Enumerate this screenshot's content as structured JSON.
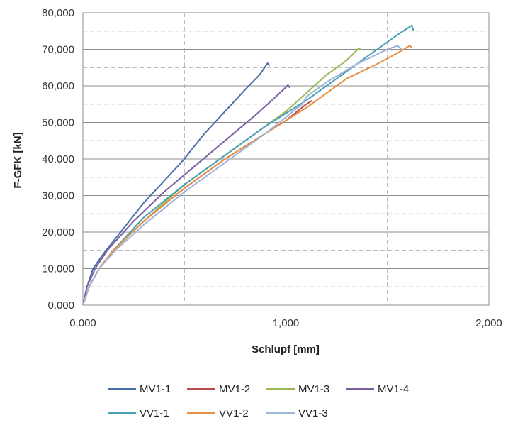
{
  "chart_data": {
    "type": "line",
    "title": "",
    "xlabel": "Schlupf [mm]",
    "ylabel": "F-GFK [kN]",
    "xlim": [
      0,
      2
    ],
    "ylim": [
      0,
      80
    ],
    "x_ticks": [
      "0,000",
      "1,000",
      "2,000"
    ],
    "y_ticks": [
      "0,000",
      "10,000",
      "20,000",
      "30,000",
      "40,000",
      "50,000",
      "60,000",
      "70,000",
      "80,000"
    ],
    "grid": true,
    "legend_position": "bottom",
    "series": [
      {
        "name": "MV1-1",
        "color": "#4a6fa8",
        "points": [
          [
            0,
            0
          ],
          [
            0.02,
            5
          ],
          [
            0.05,
            10
          ],
          [
            0.1,
            14
          ],
          [
            0.2,
            21
          ],
          [
            0.3,
            28
          ],
          [
            0.4,
            34
          ],
          [
            0.5,
            40
          ],
          [
            0.52,
            41.5
          ],
          [
            0.6,
            47
          ],
          [
            0.7,
            53
          ],
          [
            0.8,
            59
          ],
          [
            0.87,
            63
          ],
          [
            0.91,
            66.2
          ],
          [
            0.92,
            65.5
          ]
        ]
      },
      {
        "name": "MV1-2",
        "color": "#b9494a",
        "points": [
          [
            0,
            0
          ],
          [
            0.03,
            5
          ],
          [
            0.08,
            10
          ],
          [
            0.15,
            15
          ],
          [
            0.3,
            23
          ],
          [
            0.5,
            32
          ],
          [
            0.7,
            40
          ],
          [
            0.9,
            47
          ],
          [
            1.0,
            50.5
          ],
          [
            1.1,
            55
          ],
          [
            1.13,
            56
          ]
        ]
      },
      {
        "name": "MV1-3",
        "color": "#98b954",
        "points": [
          [
            0,
            0
          ],
          [
            0.03,
            5
          ],
          [
            0.08,
            10
          ],
          [
            0.15,
            15
          ],
          [
            0.3,
            23
          ],
          [
            0.5,
            33
          ],
          [
            0.7,
            41
          ],
          [
            0.9,
            49
          ],
          [
            1.0,
            53
          ],
          [
            1.1,
            58
          ],
          [
            1.2,
            63
          ],
          [
            1.3,
            67
          ],
          [
            1.36,
            70.3
          ],
          [
            1.37,
            69.8
          ]
        ]
      },
      {
        "name": "MV1-4",
        "color": "#7c5ea3",
        "points": [
          [
            0,
            0
          ],
          [
            0.02,
            5
          ],
          [
            0.06,
            10
          ],
          [
            0.12,
            15
          ],
          [
            0.25,
            23
          ],
          [
            0.4,
            31
          ],
          [
            0.55,
            38
          ],
          [
            0.7,
            45
          ],
          [
            0.85,
            52
          ],
          [
            0.95,
            57
          ],
          [
            1.01,
            60.2
          ],
          [
            1.02,
            59.5
          ]
        ]
      },
      {
        "name": "VV1-1",
        "color": "#45a0b6",
        "points": [
          [
            0,
            0
          ],
          [
            0.03,
            5
          ],
          [
            0.08,
            10
          ],
          [
            0.15,
            15
          ],
          [
            0.3,
            24
          ],
          [
            0.5,
            33
          ],
          [
            0.7,
            41
          ],
          [
            0.9,
            49
          ],
          [
            1.1,
            56
          ],
          [
            1.3,
            64
          ],
          [
            1.45,
            70
          ],
          [
            1.55,
            74
          ],
          [
            1.62,
            76.5
          ],
          [
            1.63,
            75
          ]
        ]
      },
      {
        "name": "VV1-2",
        "color": "#e68f47",
        "points": [
          [
            0,
            0
          ],
          [
            0.03,
            5
          ],
          [
            0.08,
            10
          ],
          [
            0.15,
            15
          ],
          [
            0.3,
            23
          ],
          [
            0.5,
            32
          ],
          [
            0.7,
            40
          ],
          [
            0.9,
            47
          ],
          [
            1.1,
            54
          ],
          [
            1.2,
            58
          ],
          [
            1.3,
            62
          ],
          [
            1.45,
            66
          ],
          [
            1.55,
            69
          ],
          [
            1.61,
            71
          ],
          [
            1.62,
            70.5
          ]
        ]
      },
      {
        "name": "VV1-3",
        "color": "#9fb4d9",
        "points": [
          [
            0,
            0
          ],
          [
            0.03,
            5
          ],
          [
            0.08,
            10
          ],
          [
            0.16,
            15
          ],
          [
            0.3,
            22
          ],
          [
            0.5,
            31
          ],
          [
            0.7,
            39
          ],
          [
            0.9,
            47
          ],
          [
            1.08,
            55
          ],
          [
            1.1,
            57
          ],
          [
            1.2,
            61
          ],
          [
            1.35,
            66
          ],
          [
            1.5,
            70
          ],
          [
            1.55,
            71
          ],
          [
            1.57,
            70
          ]
        ]
      }
    ]
  }
}
